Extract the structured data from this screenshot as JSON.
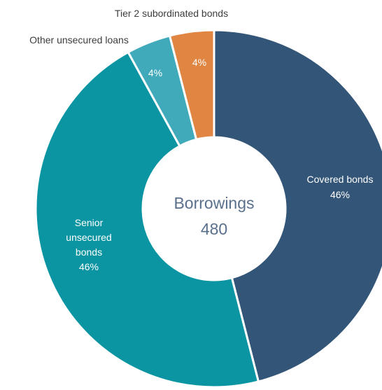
{
  "chart_data": {
    "type": "pie",
    "subtype": "donut",
    "center_label": "Borrowings",
    "center_value": "480",
    "slices": [
      {
        "name": "Covered bonds",
        "value": 46,
        "label": "46%",
        "color": "#335577"
      },
      {
        "name": "Senior unsecured bonds",
        "value": 46,
        "label": "46%",
        "color": "#0b95a3"
      },
      {
        "name": "Other unsecured loans",
        "value": 4,
        "label": "4%",
        "color": "#40aabb"
      },
      {
        "name": "Tier 2 subordinated bonds",
        "value": 4,
        "label": "4%",
        "color": "#e08642"
      }
    ]
  }
}
